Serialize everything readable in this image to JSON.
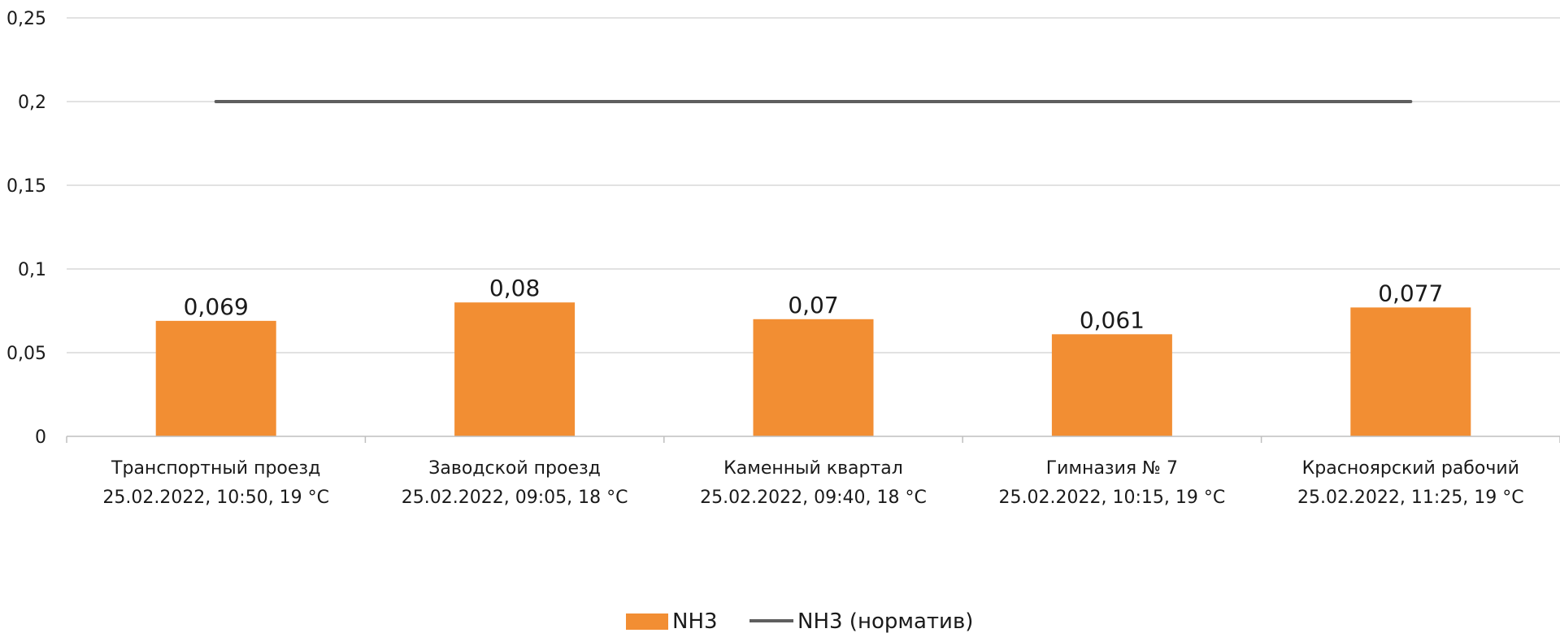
{
  "chart_data": {
    "type": "bar",
    "categories": [
      [
        "Транспортный проезд",
        "25.02.2022, 10:50, 19 °C"
      ],
      [
        "Заводской проезд",
        "25.02.2022, 09:05, 18 °C"
      ],
      [
        "Каменный квартал",
        "25.02.2022, 09:40, 18 °C"
      ],
      [
        "Гимназия № 7",
        "25.02.2022, 10:15, 19 °C"
      ],
      [
        "Красноярский рабочий",
        "25.02.2022, 11:25, 19 °C"
      ]
    ],
    "series": [
      {
        "name": "NH3",
        "kind": "bar",
        "values": [
          0.069,
          0.08,
          0.07,
          0.061,
          0.077
        ],
        "labels": [
          "0,069",
          "0,08",
          "0,07",
          "0,061",
          "0,077"
        ]
      },
      {
        "name": "NH3 (норматив)",
        "kind": "line",
        "values": [
          0.2,
          0.2,
          0.2,
          0.2,
          0.2
        ]
      }
    ],
    "yticks": [
      0,
      0.05,
      0.1,
      0.15,
      0.2,
      0.25
    ],
    "ytick_labels": [
      "0",
      "0,05",
      "0,1",
      "0,15",
      "0,2",
      "0,25"
    ],
    "ylim": [
      0,
      0.25
    ],
    "grid": true,
    "legend_position": "bottom-center",
    "colors": {
      "bar": "#F28E33",
      "line": "#5f5f5f",
      "grid": "#d9d9d9",
      "axis": "#bfbfbf"
    }
  }
}
